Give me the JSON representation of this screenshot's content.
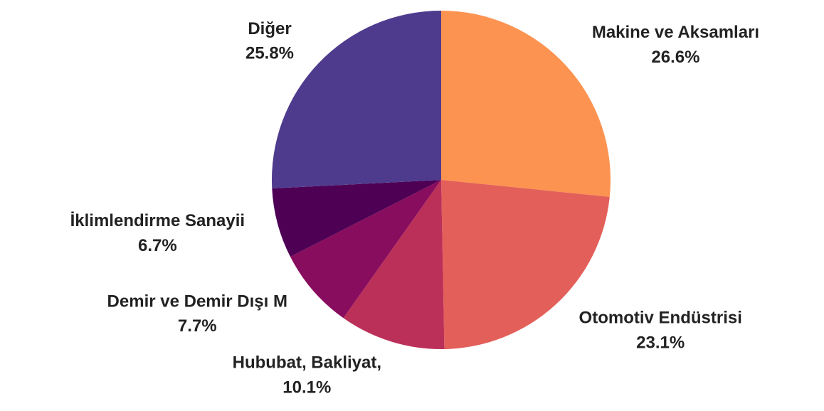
{
  "chart_data": {
    "type": "pie",
    "categories": [
      "Makine ve Aksamları",
      "Otomotiv Endüstrisi",
      "Hububat, Bakliyat,",
      "Demir ve Demir Dışı M",
      "İklimlendirme Sanayii",
      "Diğer"
    ],
    "values": [
      26.6,
      23.1,
      10.1,
      7.7,
      6.7,
      25.8
    ],
    "value_labels": [
      "26.6%",
      "23.1%",
      "10.1%",
      "7.7%",
      "6.7%",
      "25.8%"
    ],
    "colors": [
      "#fd9350",
      "#e35f5a",
      "#bb3059",
      "#880d5e",
      "#4e0055",
      "#4f3b8d"
    ]
  }
}
